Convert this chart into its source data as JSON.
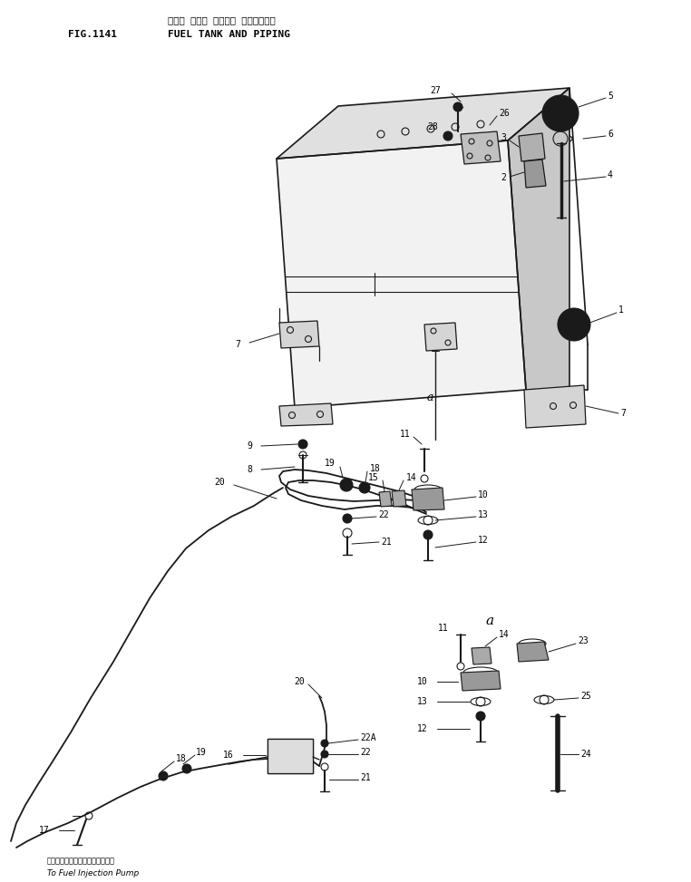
{
  "title_japanese": "フェル タンク オヨびー パイピングー",
  "title_english": "FUEL TANK AND PIPING",
  "fig_number": "FIG.1141",
  "bottom_japanese": "フェルインジェクションポンプへ",
  "bottom_english": "To Fuel Injection Pump",
  "bg_color": "#ffffff",
  "line_color": "#1a1a1a"
}
